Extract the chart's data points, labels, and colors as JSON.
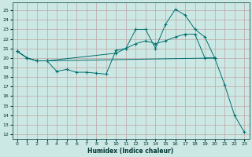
{
  "xlabel": "Humidex (Indice chaleur)",
  "bg_color": "#cce8e4",
  "grid_color_major": "#b0d0cc",
  "grid_color_minor": "#d8ecea",
  "line_color": "#007070",
  "xlim": [
    -0.5,
    23.5
  ],
  "ylim": [
    11.5,
    25.8
  ],
  "yticks": [
    12,
    13,
    14,
    15,
    16,
    17,
    18,
    19,
    20,
    21,
    22,
    23,
    24,
    25
  ],
  "xticks": [
    0,
    1,
    2,
    3,
    4,
    5,
    6,
    7,
    8,
    9,
    10,
    11,
    12,
    13,
    14,
    15,
    16,
    17,
    18,
    19,
    20,
    21,
    22,
    23
  ],
  "line1_x": [
    0,
    1,
    2,
    3,
    4,
    5,
    6,
    7,
    8,
    9,
    10,
    11,
    12,
    13,
    14,
    15,
    16,
    17,
    18,
    19,
    20
  ],
  "line1_y": [
    20.7,
    20.0,
    19.7,
    19.7,
    18.6,
    18.8,
    18.5,
    18.5,
    18.4,
    18.3,
    20.8,
    21.0,
    23.0,
    23.0,
    21.0,
    23.5,
    25.1,
    24.5,
    23.0,
    22.2,
    20.0
  ],
  "line2_x": [
    0,
    1,
    2,
    3,
    10,
    11,
    12,
    13,
    14,
    15,
    16,
    17,
    18,
    19,
    20
  ],
  "line2_y": [
    20.7,
    20.0,
    19.7,
    19.7,
    20.5,
    21.0,
    21.5,
    21.8,
    21.5,
    21.8,
    22.2,
    22.5,
    22.5,
    20.0,
    20.0
  ],
  "line3_x": [
    0,
    1,
    2,
    3,
    20,
    21,
    22,
    23
  ],
  "line3_y": [
    20.7,
    20.0,
    19.7,
    19.7,
    20.0,
    17.2,
    14.0,
    12.2
  ]
}
